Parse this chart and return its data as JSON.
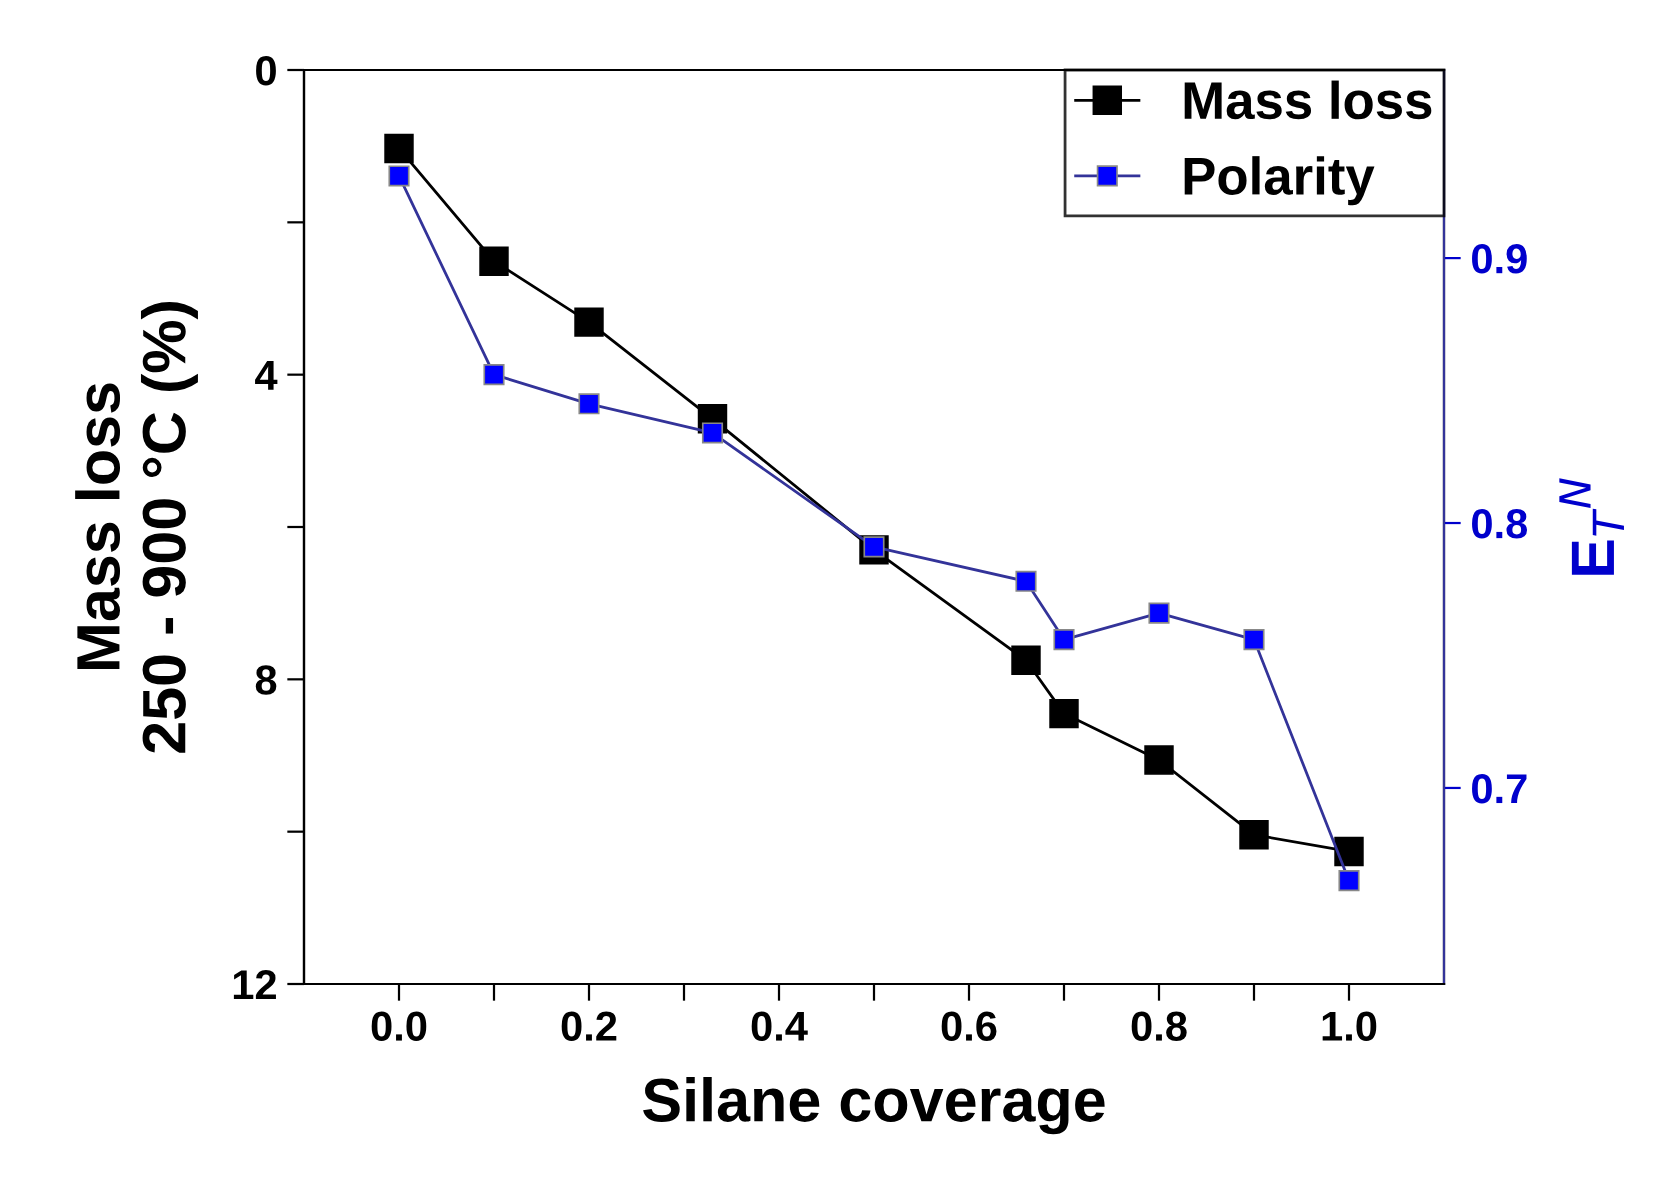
{
  "chart_data": {
    "type": "line",
    "xlabel": "Silane coverage",
    "ylabel": "Mass loss\n250 - 900 °C (%)",
    "y2label": "E$_{T}$$^{N}$",
    "x": [
      0,
      0.1,
      0.2,
      0.33,
      0.5,
      0.66,
      0.7,
      0.8,
      0.9,
      1.0
    ],
    "series": [
      {
        "name": "Mass loss",
        "color": "#000000",
        "values": [
          1.03,
          2.51,
          3.31,
          4.58,
          6.3,
          7.75,
          8.45,
          9.06,
          10.04,
          10.26
        ]
      },
      {
        "name": "Polarity",
        "color": "#0000ff",
        "axis": "y2",
        "values": [
          0.931,
          0.856,
          0.845,
          0.834,
          0.791,
          0.778,
          0.756,
          0.766,
          0.756,
          0.665
        ]
      }
    ],
    "xlim": [
      -0.1,
      1.1
    ],
    "xticks": [
      {
        "value": 0.0,
        "label": "0.0"
      },
      {
        "value": 0.1,
        "label": null
      },
      {
        "value": 0.2,
        "label": "0.2"
      },
      {
        "value": 0.3,
        "label": null
      },
      {
        "value": 0.4,
        "label": "0.4"
      },
      {
        "value": 0.5,
        "label": null
      },
      {
        "value": 0.6,
        "label": "0.6"
      },
      {
        "value": 0.7,
        "label": null
      },
      {
        "value": 0.8,
        "label": "0.8"
      },
      {
        "value": 0.9,
        "label": null
      },
      {
        "value": 1.0,
        "label": "1.0"
      }
    ],
    "ylim": [
      12,
      0
    ],
    "yticks": [
      0,
      {
        "value": 2,
        "label": null
      },
      4,
      {
        "value": 6,
        "label": null
      },
      8,
      {
        "value": 10,
        "label": null
      },
      12
    ],
    "y2lim": [
      0.626,
      0.971
    ],
    "y2ticks": [
      0.7,
      0.8,
      0.9
    ],
    "marker": "square",
    "line_style": "solid",
    "legend": "top right",
    "grid": false
  }
}
